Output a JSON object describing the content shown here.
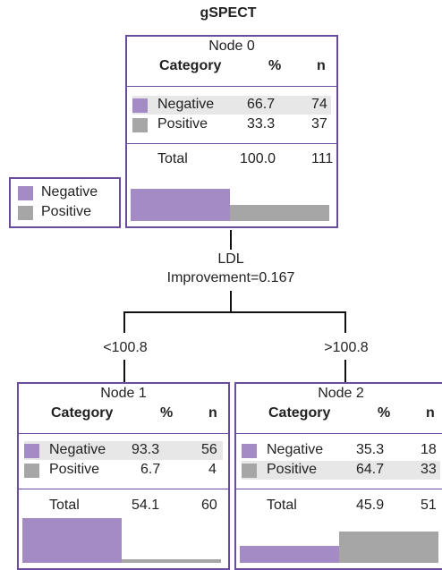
{
  "title": "gSPECT",
  "colors": {
    "negative": "#a58bc5",
    "positive": "#a6a6a6",
    "border": "#6b4c9a"
  },
  "legend": {
    "negative": "Negative",
    "positive": "Positive"
  },
  "headers": {
    "category": "Category",
    "percent": "%",
    "n": "n"
  },
  "split": {
    "variable": "LDL",
    "improvement": "Improvement=0.167",
    "left": "<100.8",
    "right": ">100.8"
  },
  "nodes": [
    {
      "title": "Node 0",
      "rows": [
        {
          "category": "Negative",
          "percent": "66.7",
          "n": "74"
        },
        {
          "category": "Positive",
          "percent": "33.3",
          "n": "37"
        }
      ],
      "total": {
        "label": "Total",
        "percent": "100.0",
        "n": "111"
      },
      "bars": [
        66.7,
        33.3
      ]
    },
    {
      "title": "Node 1",
      "rows": [
        {
          "category": "Negative",
          "percent": "93.3",
          "n": "56"
        },
        {
          "category": "Positive",
          "percent": "6.7",
          "n": "4"
        }
      ],
      "total": {
        "label": "Total",
        "percent": "54.1",
        "n": "60"
      },
      "bars": [
        93.3,
        6.7
      ]
    },
    {
      "title": "Node 2",
      "rows": [
        {
          "category": "Negative",
          "percent": "35.3",
          "n": "18"
        },
        {
          "category": "Positive",
          "percent": "64.7",
          "n": "33"
        }
      ],
      "total": {
        "label": "Total",
        "percent": "45.9",
        "n": "51"
      },
      "bars": [
        35.3,
        64.7
      ]
    }
  ]
}
